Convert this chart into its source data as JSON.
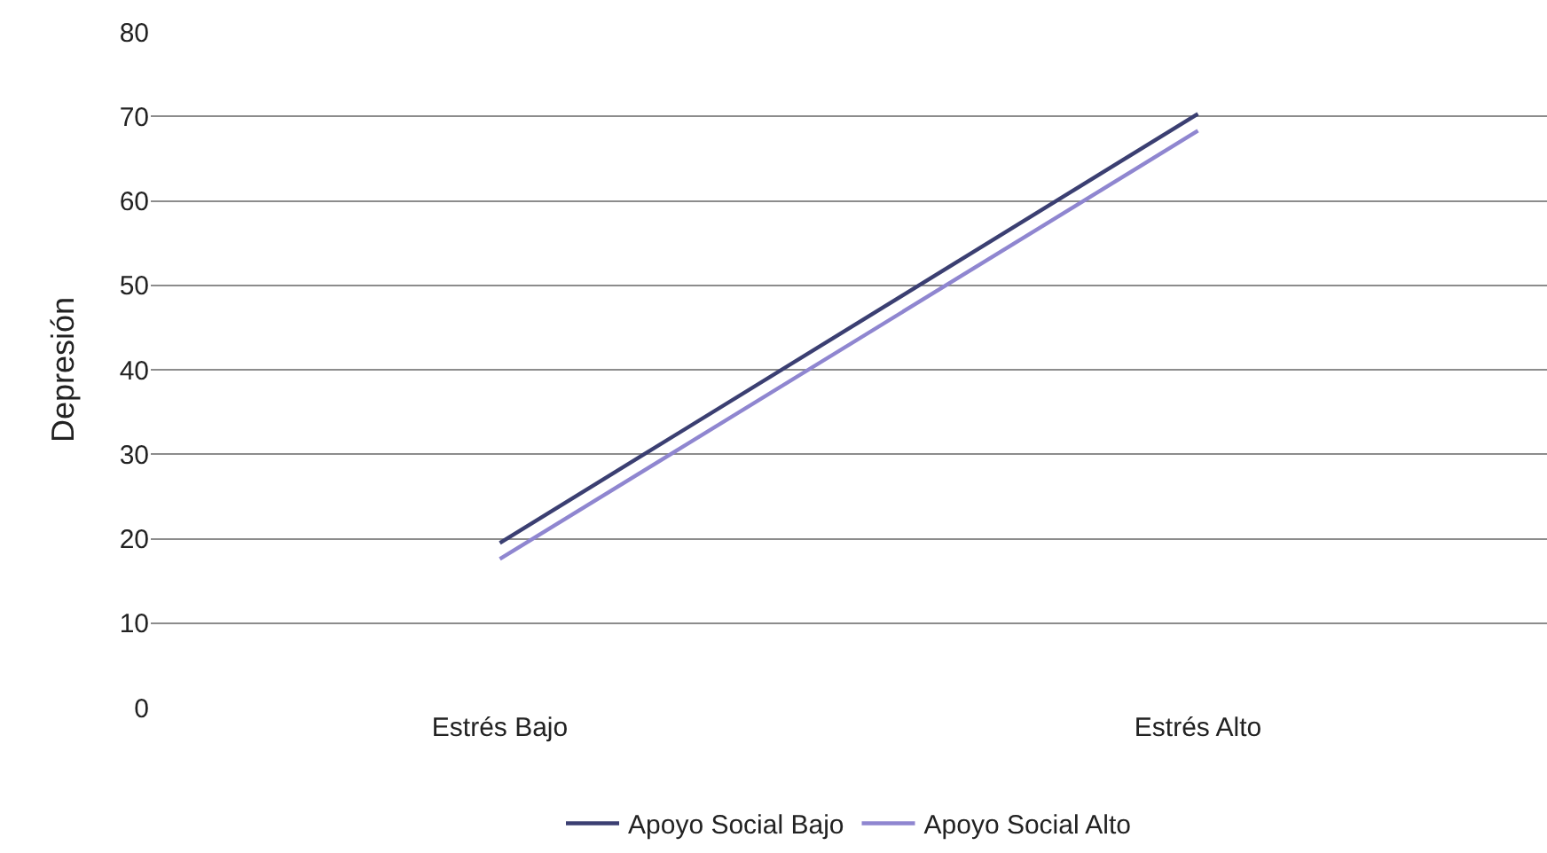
{
  "chart_data": {
    "type": "line",
    "ylabel": "Depresión",
    "categories": [
      "Estrés Bajo",
      "Estrés Alto"
    ],
    "series": [
      {
        "name": "Apoyo Social Bajo",
        "color": "#3b3f72",
        "values": [
          19.5,
          70.3
        ]
      },
      {
        "name": "Apoyo Social Alto",
        "color": "#8f86d0",
        "values": [
          17.6,
          68.3
        ]
      }
    ],
    "ylim": [
      0,
      80
    ],
    "yticks": [
      0,
      10,
      20,
      30,
      40,
      50,
      60,
      70,
      80
    ],
    "grid": "y",
    "legend": "bottom",
    "marker": "none",
    "line_style": "solid"
  }
}
